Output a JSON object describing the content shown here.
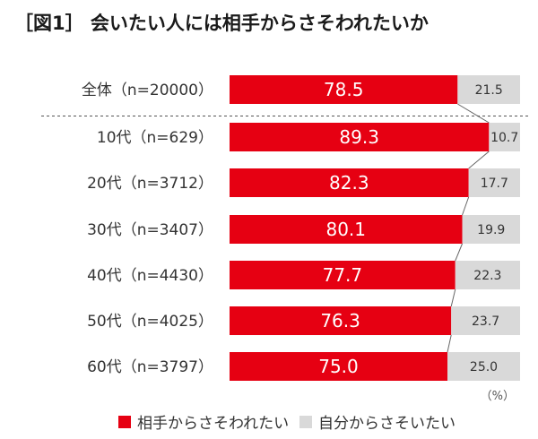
{
  "chart_data": {
    "type": "bar",
    "orientation": "horizontal",
    "stacked": true,
    "percent_stacked": true,
    "title": "［図1］ 会いたい人には相手からさそわれたいか",
    "unit": "（%）",
    "categories": [
      "全体（n=20000）",
      "10代（n=629）",
      "20代（n=3712）",
      "30代（n=3407）",
      "40代（n=4430）",
      "50代（n=4025）",
      "60代（n=3797）"
    ],
    "series": [
      {
        "name": "相手からさそわれたい",
        "color": "#e60012",
        "values": [
          78.5,
          89.3,
          82.3,
          80.1,
          77.7,
          76.3,
          75.0
        ]
      },
      {
        "name": "自分からさそいたい",
        "color": "#d9d9d9",
        "values": [
          21.5,
          10.7,
          17.7,
          19.9,
          22.3,
          23.7,
          25.0
        ]
      }
    ],
    "value_labels": {
      "series_0": [
        "78.5",
        "89.3",
        "82.3",
        "80.1",
        "77.7",
        "76.3",
        "75.0"
      ],
      "series_1": [
        "21.5",
        "10.7",
        "17.7",
        "19.9",
        "22.3",
        "23.7",
        "25.0"
      ]
    },
    "connector_lines": true,
    "separator_after_first_row": true,
    "xlim": [
      0,
      100
    ],
    "legend_position": "bottom",
    "grid": false
  }
}
